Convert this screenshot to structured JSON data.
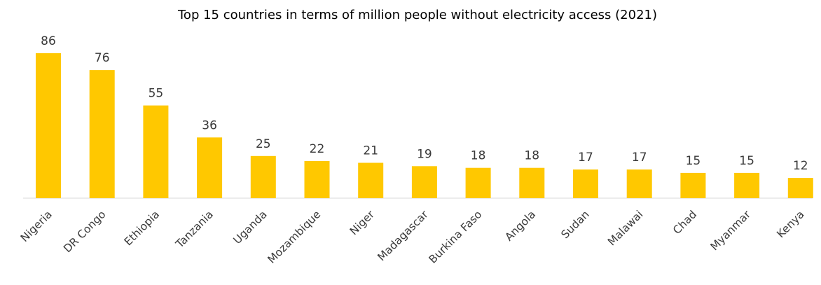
{
  "chart_data": {
    "type": "bar",
    "title": "Top 15 countries in terms of million people without electricity access (2021)",
    "xlabel": "",
    "ylabel": "",
    "categories": [
      "Nigeria",
      "DR Congo",
      "Ethiopia",
      "Tanzania",
      "Uganda",
      "Mozambique",
      "Niger",
      "Madagascar",
      "Burkina Faso",
      "Angola",
      "Sudan",
      "Malawai",
      "Chad",
      "Myanmar",
      "Kenya"
    ],
    "values": [
      86,
      76,
      55,
      36,
      25,
      22,
      21,
      19,
      18,
      18,
      17,
      17,
      15,
      15,
      12
    ],
    "ylim": [
      0,
      86
    ],
    "grid": false,
    "legend": "none",
    "data_labels": true,
    "colors": {
      "bar": "#FFC800",
      "axis": "#d9d9d9",
      "text": "#3a3a3a"
    }
  }
}
